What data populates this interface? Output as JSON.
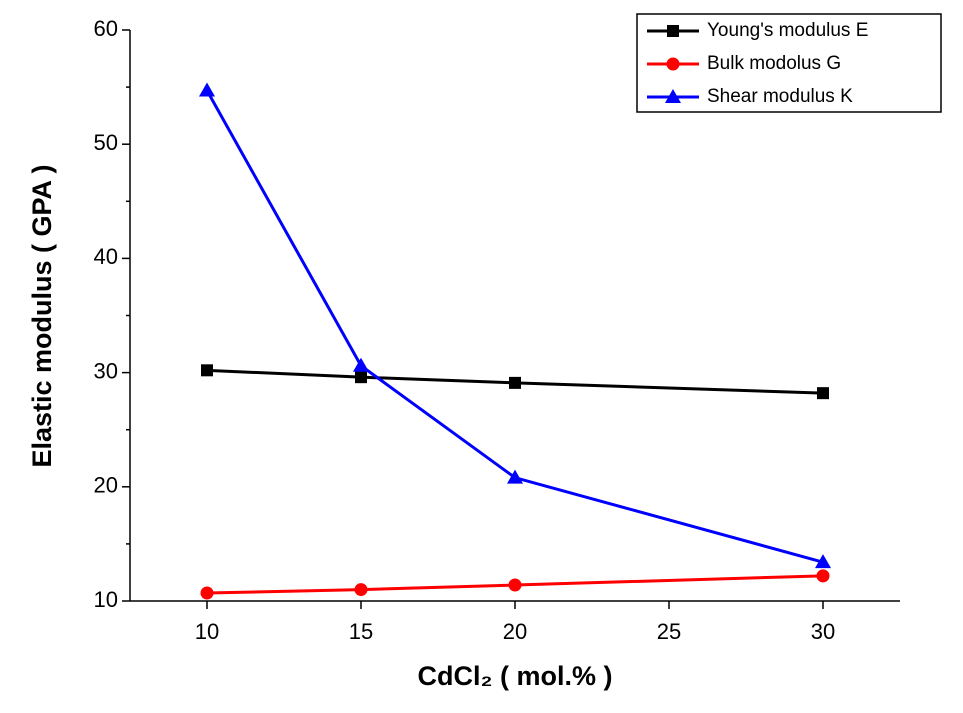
{
  "chart_data": {
    "type": "line",
    "x_label": "CdCl₂ ( mol.% )",
    "y_label": "Elastic modulus ( GPA )",
    "x": [
      10,
      15,
      20,
      30
    ],
    "series": [
      {
        "name": "Young's modulus E",
        "color": "#000000",
        "marker": "square",
        "values": [
          30.2,
          29.6,
          29.1,
          28.2
        ]
      },
      {
        "name": "Bulk modolus G",
        "color": "#ff0000",
        "marker": "circle",
        "values": [
          10.7,
          11.0,
          11.4,
          12.2
        ]
      },
      {
        "name": "Shear modulus K",
        "color": "#0000ff",
        "marker": "triangle",
        "values": [
          54.7,
          30.6,
          20.8,
          13.4
        ]
      }
    ],
    "xlim": [
      7.5,
      32.5
    ],
    "xticks": [
      10,
      15,
      20,
      25,
      30
    ],
    "ylim": [
      10,
      60
    ],
    "yticks": [
      10,
      20,
      30,
      40,
      50,
      60
    ],
    "yminorticks": [
      15,
      25,
      35,
      45,
      55
    ],
    "legend": "top-right",
    "grid": false
  }
}
